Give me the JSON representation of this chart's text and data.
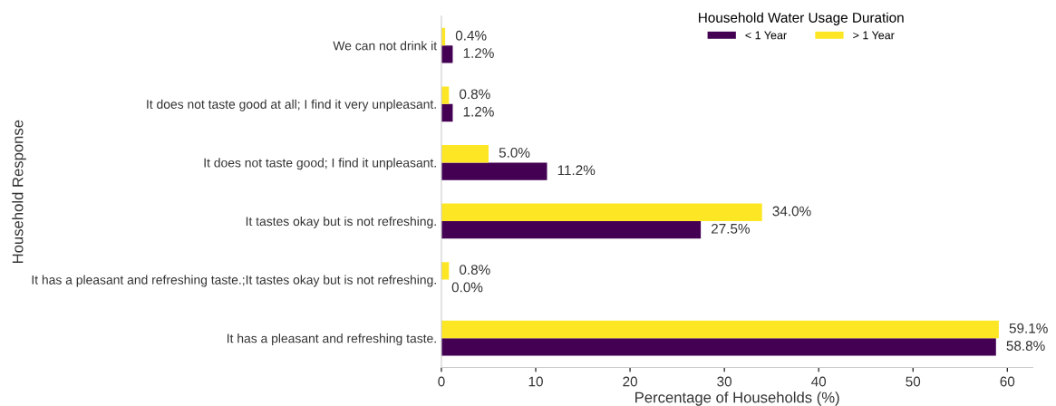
{
  "chart_data": {
    "type": "bar",
    "orientation": "horizontal",
    "xlabel": "Percentage of Households (%)",
    "ylabel": "Household Response",
    "legend_title": "Household Water Usage Duration",
    "categories": [
      "We can not drink it",
      "It does not taste good at all; I find it very unpleasant.",
      "It does not taste good; I find it unpleasant.",
      "It tastes okay but is not refreshing.",
      "It has a pleasant and refreshing taste.;It tastes okay but is not refreshing.",
      "It has a pleasant and refreshing taste."
    ],
    "series": [
      {
        "name": "< 1 Year",
        "color": "#440154",
        "values": [
          1.2,
          1.2,
          11.2,
          27.5,
          0.0,
          58.8
        ],
        "value_labels": [
          "1.2%",
          "1.2%",
          "11.2%",
          "27.5%",
          "0.0%",
          "58.8%"
        ]
      },
      {
        "name": "> 1 Year",
        "color": "#fde725",
        "values": [
          0.4,
          0.8,
          5.0,
          34.0,
          0.8,
          59.1
        ],
        "value_labels": [
          "0.4%",
          "0.8%",
          "5.0%",
          "34.0%",
          "0.8%",
          "59.1%"
        ]
      }
    ],
    "xlim": [
      0,
      62.7
    ],
    "xticks": [
      0,
      10,
      20,
      30,
      40,
      50,
      60
    ],
    "grid": false,
    "legend": "top right"
  }
}
